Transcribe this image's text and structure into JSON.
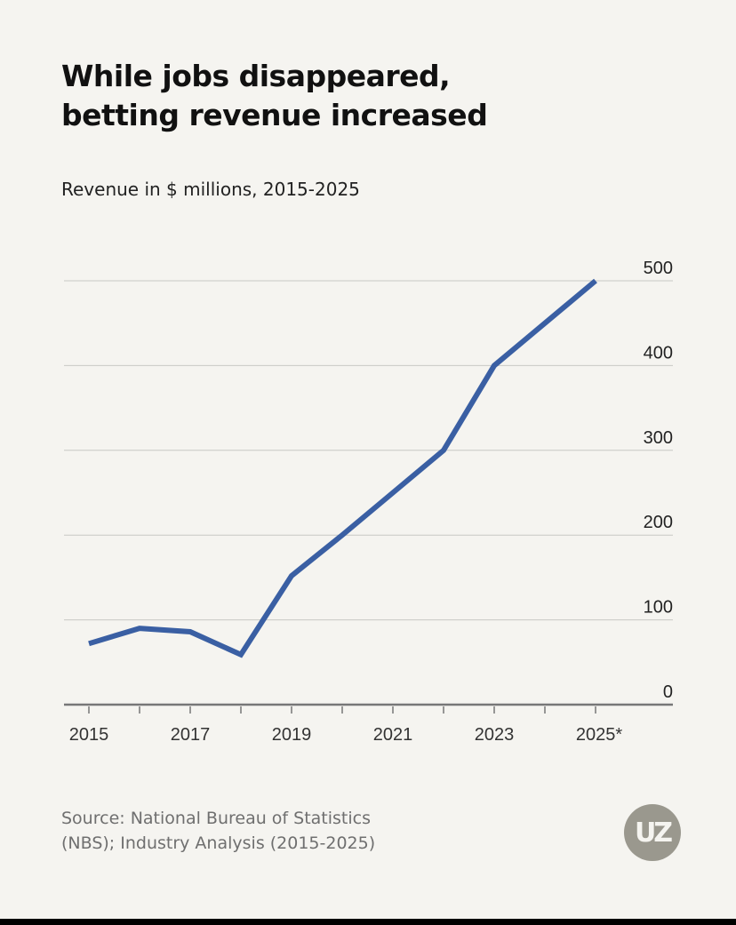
{
  "title_line1": "While jobs disappeared,",
  "title_line2": "betting revenue increased",
  "subtitle": "Revenue in $ millions, 2015-2025",
  "source_line1": "Source: National Bureau of Statistics",
  "source_line2": "(NBS); Industry Analysis (2015-2025)",
  "logo_text": "UZ",
  "colors": {
    "line": "#3a5fa3",
    "background": "#f5f4f0",
    "grid": "#c8c8c4",
    "axis": "#777777"
  },
  "chart_data": {
    "type": "line",
    "title": "While jobs disappeared, betting revenue increased",
    "subtitle": "Revenue in $ millions, 2015-2025",
    "xlabel": "",
    "ylabel": "Revenue in $ millions",
    "x": [
      2015,
      2016,
      2017,
      2018,
      2019,
      2020,
      2021,
      2022,
      2023,
      2024,
      2025
    ],
    "series": [
      {
        "name": "Betting revenue",
        "values": [
          72,
          90,
          86,
          59,
          152,
          200,
          250,
          300,
          400,
          450,
          500
        ]
      }
    ],
    "xlim": [
      2015,
      2025
    ],
    "ylim": [
      0,
      500
    ],
    "x_tick_labels": [
      "2015",
      "2017",
      "2019",
      "2021",
      "2023",
      "2025*"
    ],
    "y_ticks": [
      0,
      100,
      200,
      300,
      400,
      500
    ],
    "y_tick_labels": [
      "0",
      "100",
      "200",
      "300",
      "400",
      "500"
    ],
    "grid": true,
    "y_axis_position": "right"
  }
}
